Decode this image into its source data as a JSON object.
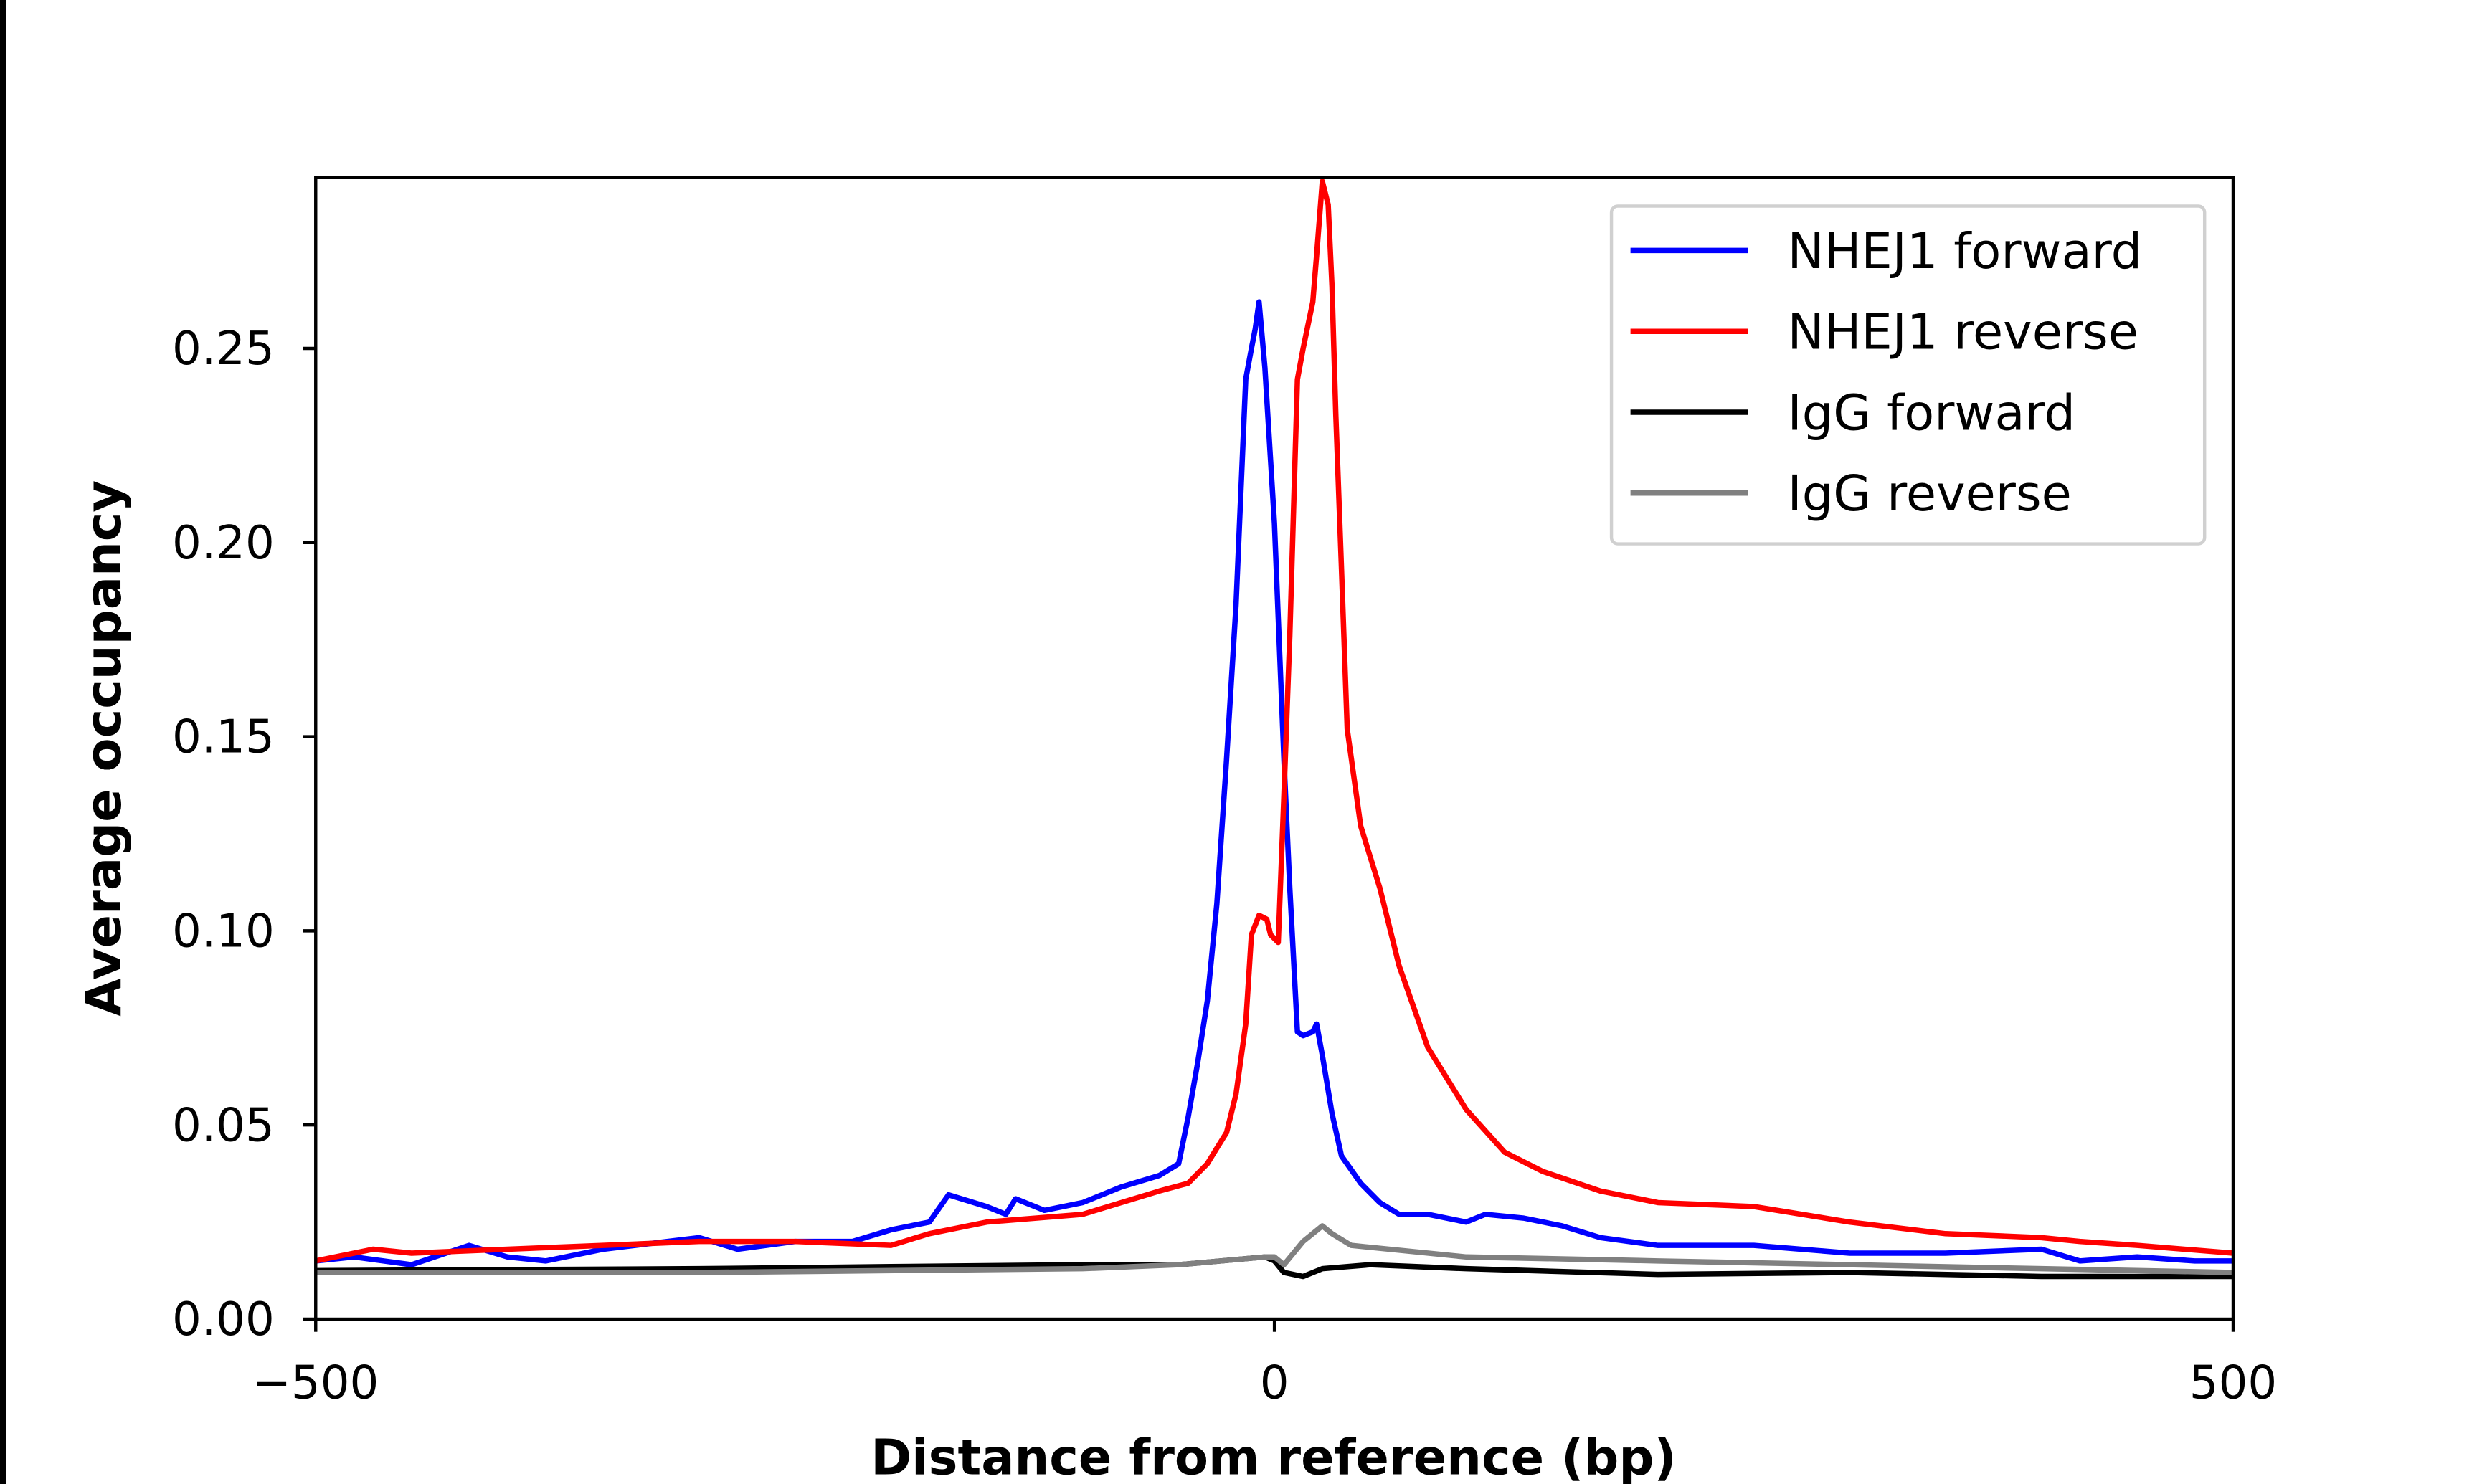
{
  "chart_data": {
    "type": "line",
    "title": "",
    "xlabel": "Distance from reference (bp)",
    "ylabel": "Average occupancy",
    "xlim": [
      -500,
      500
    ],
    "ylim": [
      0,
      0.294
    ],
    "xticks": [
      -500,
      0,
      500
    ],
    "xtick_labels": [
      "−500",
      "0",
      "500"
    ],
    "yticks": [
      0,
      0.05,
      0.1,
      0.15,
      0.2,
      0.25
    ],
    "ytick_labels": [
      "0.00",
      "0.05",
      "0.10",
      "0.15",
      "0.20",
      "0.25"
    ],
    "grid": false,
    "legend_position": "top-right",
    "series": [
      {
        "name": "NHEJ1 forward",
        "color": "#0000ff",
        "x": [
          -500,
          -480,
          -450,
          -420,
          -400,
          -380,
          -350,
          -300,
          -280,
          -250,
          -220,
          -200,
          -180,
          -170,
          -150,
          -140,
          -135,
          -120,
          -100,
          -80,
          -60,
          -50,
          -45,
          -40,
          -35,
          -30,
          -25,
          -20,
          -15,
          -12,
          -10,
          -8,
          -5,
          0,
          5,
          8,
          12,
          15,
          20,
          22,
          25,
          30,
          35,
          45,
          55,
          65,
          80,
          100,
          110,
          130,
          150,
          170,
          200,
          250,
          300,
          350,
          400,
          420,
          450,
          480,
          500
        ],
        "y": [
          0.015,
          0.016,
          0.014,
          0.019,
          0.016,
          0.015,
          0.018,
          0.021,
          0.018,
          0.02,
          0.02,
          0.023,
          0.025,
          0.032,
          0.029,
          0.027,
          0.031,
          0.028,
          0.03,
          0.034,
          0.037,
          0.04,
          0.052,
          0.066,
          0.082,
          0.107,
          0.144,
          0.184,
          0.242,
          0.25,
          0.255,
          0.262,
          0.245,
          0.205,
          0.144,
          0.111,
          0.074,
          0.073,
          0.074,
          0.076,
          0.068,
          0.053,
          0.042,
          0.035,
          0.03,
          0.027,
          0.027,
          0.025,
          0.027,
          0.026,
          0.024,
          0.021,
          0.019,
          0.019,
          0.017,
          0.017,
          0.018,
          0.015,
          0.016,
          0.015,
          0.015
        ]
      },
      {
        "name": "NHEJ1 reverse",
        "color": "#ff0000",
        "x": [
          -500,
          -470,
          -450,
          -400,
          -350,
          -300,
          -250,
          -200,
          -180,
          -150,
          -100,
          -60,
          -45,
          -35,
          -30,
          -25,
          -20,
          -15,
          -12,
          -8,
          -4,
          -2,
          2,
          5,
          8,
          12,
          15,
          20,
          22,
          25,
          28,
          30,
          32,
          35,
          38,
          45,
          55,
          65,
          80,
          100,
          120,
          140,
          170,
          200,
          250,
          300,
          350,
          400,
          420,
          450,
          500
        ],
        "y": [
          0.015,
          0.018,
          0.017,
          0.018,
          0.019,
          0.02,
          0.02,
          0.019,
          0.022,
          0.025,
          0.027,
          0.033,
          0.035,
          0.04,
          0.044,
          0.048,
          0.058,
          0.076,
          0.099,
          0.104,
          0.103,
          0.099,
          0.097,
          0.135,
          0.176,
          0.242,
          0.25,
          0.262,
          0.274,
          0.293,
          0.287,
          0.266,
          0.233,
          0.193,
          0.152,
          0.127,
          0.111,
          0.091,
          0.07,
          0.054,
          0.043,
          0.038,
          0.033,
          0.03,
          0.029,
          0.025,
          0.022,
          0.021,
          0.02,
          0.019,
          0.017
        ]
      },
      {
        "name": "IgG forward",
        "color": "#000000",
        "x": [
          -500,
          -300,
          -200,
          -100,
          -50,
          -5,
          0,
          5,
          15,
          25,
          50,
          100,
          200,
          300,
          400,
          500
        ],
        "y": [
          0.0125,
          0.013,
          0.0135,
          0.014,
          0.014,
          0.016,
          0.015,
          0.012,
          0.011,
          0.013,
          0.014,
          0.013,
          0.0115,
          0.012,
          0.011,
          0.011
        ]
      },
      {
        "name": "IgG reverse",
        "color": "#808080",
        "x": [
          -500,
          -300,
          -100,
          -50,
          -5,
          0,
          5,
          15,
          25,
          30,
          40,
          100,
          200,
          300,
          400,
          500
        ],
        "y": [
          0.012,
          0.012,
          0.013,
          0.014,
          0.016,
          0.016,
          0.014,
          0.02,
          0.024,
          0.022,
          0.019,
          0.016,
          0.015,
          0.014,
          0.013,
          0.012
        ]
      }
    ]
  }
}
